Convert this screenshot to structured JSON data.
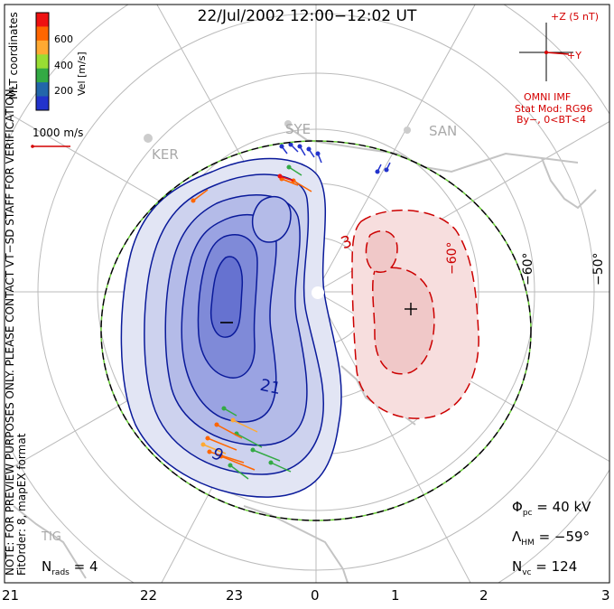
{
  "title": "22/Jul/2002 12:00−12:02 UT",
  "mlt_ticks": [
    "21",
    "22",
    "23",
    "0",
    "1",
    "2",
    "3"
  ],
  "lat_labels": [
    "−60°",
    "−50°",
    "−60°"
  ],
  "colorbar": {
    "label": "Vel [m/s]",
    "ticks": [
      "600",
      "400",
      "200"
    ],
    "colors": [
      "#ee1111",
      "#ff6600",
      "#ffaa33",
      "#99dd33",
      "#33aa44",
      "#2266aa",
      "#2233cc"
    ]
  },
  "coord_label": "MLT coordinates",
  "ref_vector_label": "1000 m/s",
  "imf": {
    "scale_label": "+Z (5 nT)",
    "y_label": "+Y",
    "source": "OMNI IMF",
    "model": "Stat Mod: RG96",
    "condition": "By−, 0<BT<4"
  },
  "stations": [
    "KER",
    "SYE",
    "SAN",
    "TIG"
  ],
  "contour_labels": [
    "−",
    "+",
    "21",
    "9",
    "3"
  ],
  "note": "NOTE: FOR PREVIEW PURPOSES ONLY. PLEASE CONTACT VT−SD STAFF FOR VERIFICATION.",
  "fit_order": "FitOrder: 8, mapEX format",
  "stats": {
    "nrads_label": "N",
    "nrads_sub": "rads",
    "nrads_value": "= 4",
    "phi_label": "Φ",
    "phi_sub": "pc",
    "phi_value": "= 40 kV",
    "lambda_label": "Λ",
    "lambda_sub": "HM",
    "lambda_value": "= −59°",
    "nvc_label": "N",
    "nvc_sub": "vc",
    "nvc_value": "= 124"
  },
  "colors": {
    "negative_cell": "#5566dd",
    "positive_cell": "#f0c0c0",
    "boundary": "#000000",
    "grid": "#bbbbbb",
    "positive_contour": "#cc0000",
    "negative_contour": "#0a1a9a"
  }
}
